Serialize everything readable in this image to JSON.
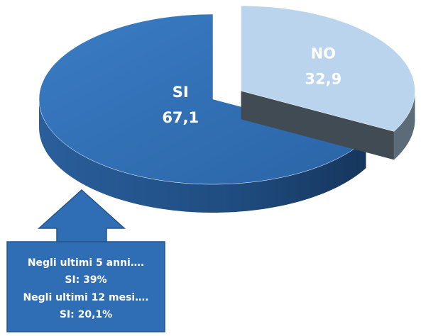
{
  "chart_data": {
    "type": "pie",
    "categories": [
      "SI",
      "NO"
    ],
    "values": [
      67.1,
      32.9
    ],
    "value_labels": [
      "67,1",
      "32,9"
    ],
    "colors": [
      "#2f6db4",
      "#b9d4ec"
    ],
    "annotation": [
      "Negli ultimi 5 anni….",
      "SI:  39%",
      "Negli ultimi 12 mesi….",
      "SI: 20,1%"
    ]
  }
}
